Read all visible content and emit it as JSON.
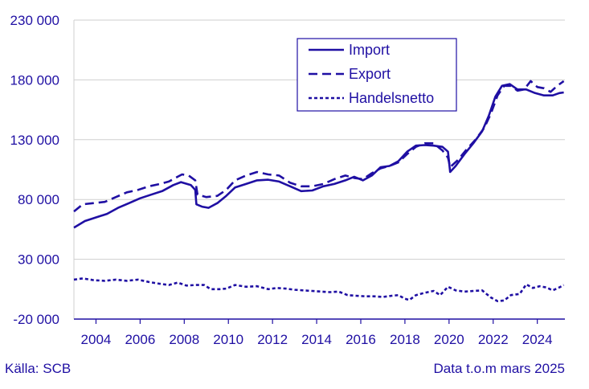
{
  "colors": {
    "series": "#1f0fa3",
    "grid": "#cfcfcf",
    "text": "#1f0fa3"
  },
  "footer": {
    "source": "Källa: SCB",
    "note": "Data t.o.m mars 2025"
  },
  "chart_data": {
    "type": "line",
    "title": "",
    "xlabel": "",
    "ylabel": "",
    "xlim": [
      2003.0,
      2025.25
    ],
    "ylim": [
      -20000,
      230000
    ],
    "yticks": [
      -20000,
      30000,
      80000,
      130000,
      180000,
      230000
    ],
    "ytick_labels": [
      "-20 000",
      "30 000",
      "80 000",
      "130 000",
      "180 000",
      "230 000"
    ],
    "xticks": [
      2004,
      2006,
      2008,
      2010,
      2012,
      2014,
      2016,
      2018,
      2020,
      2022,
      2024
    ],
    "xtick_labels": [
      "2004",
      "2006",
      "2008",
      "2010",
      "2012",
      "2014",
      "2016",
      "2018",
      "2020",
      "2022",
      "2024"
    ],
    "grid": "horizontal",
    "legend": "top-center",
    "series": [
      {
        "name": "Import",
        "style": "solid",
        "points": [
          [
            2003.0,
            56500
          ],
          [
            2003.5,
            62000
          ],
          [
            2004.0,
            65000
          ],
          [
            2004.5,
            68000
          ],
          [
            2005.0,
            73000
          ],
          [
            2005.5,
            77000
          ],
          [
            2006.0,
            81000
          ],
          [
            2006.5,
            84000
          ],
          [
            2007.0,
            87000
          ],
          [
            2007.5,
            92000
          ],
          [
            2007.85,
            94500
          ],
          [
            2008.3,
            92000
          ],
          [
            2008.5,
            88000
          ],
          [
            2008.55,
            76000
          ],
          [
            2008.8,
            74000
          ],
          [
            2009.1,
            73000
          ],
          [
            2009.5,
            77000
          ],
          [
            2009.9,
            83000
          ],
          [
            2010.3,
            90000
          ],
          [
            2010.8,
            93000
          ],
          [
            2011.3,
            96000
          ],
          [
            2011.8,
            96500
          ],
          [
            2012.3,
            95000
          ],
          [
            2012.8,
            91000
          ],
          [
            2013.3,
            87000
          ],
          [
            2013.8,
            87500
          ],
          [
            2014.3,
            91000
          ],
          [
            2014.8,
            93000
          ],
          [
            2015.3,
            96000
          ],
          [
            2015.7,
            99000
          ],
          [
            2016.1,
            96000
          ],
          [
            2016.5,
            100000
          ],
          [
            2016.9,
            107000
          ],
          [
            2017.3,
            108000
          ],
          [
            2017.7,
            112000
          ],
          [
            2018.1,
            120000
          ],
          [
            2018.5,
            125000
          ],
          [
            2018.9,
            125500
          ],
          [
            2019.3,
            125000
          ],
          [
            2019.7,
            124000
          ],
          [
            2019.95,
            120000
          ],
          [
            2020.05,
            103000
          ],
          [
            2020.3,
            108000
          ],
          [
            2020.7,
            118000
          ],
          [
            2021.1,
            127000
          ],
          [
            2021.5,
            137000
          ],
          [
            2021.8,
            150000
          ],
          [
            2022.1,
            166000
          ],
          [
            2022.4,
            175000
          ],
          [
            2022.75,
            176500
          ],
          [
            2023.1,
            172000
          ],
          [
            2023.5,
            172000
          ],
          [
            2023.9,
            169000
          ],
          [
            2024.3,
            167000
          ],
          [
            2024.7,
            167000
          ],
          [
            2025.0,
            169000
          ],
          [
            2025.2,
            169500
          ]
        ]
      },
      {
        "name": "Export",
        "style": "dashed",
        "points": [
          [
            2003.0,
            70000
          ],
          [
            2003.4,
            76000
          ],
          [
            2003.9,
            77000
          ],
          [
            2004.4,
            78000
          ],
          [
            2004.9,
            82000
          ],
          [
            2005.4,
            86000
          ],
          [
            2005.9,
            88000
          ],
          [
            2006.4,
            91000
          ],
          [
            2006.9,
            93000
          ],
          [
            2007.3,
            95000
          ],
          [
            2007.7,
            99000
          ],
          [
            2007.9,
            101000
          ],
          [
            2008.2,
            100000
          ],
          [
            2008.5,
            96000
          ],
          [
            2008.6,
            84000
          ],
          [
            2009.0,
            82000
          ],
          [
            2009.5,
            83000
          ],
          [
            2009.9,
            88000
          ],
          [
            2010.3,
            96000
          ],
          [
            2010.8,
            100000
          ],
          [
            2011.3,
            103000
          ],
          [
            2011.8,
            101000
          ],
          [
            2012.3,
            100000
          ],
          [
            2012.8,
            94000
          ],
          [
            2013.3,
            91000
          ],
          [
            2013.8,
            91000
          ],
          [
            2014.3,
            93000
          ],
          [
            2014.8,
            97000
          ],
          [
            2015.3,
            100000
          ],
          [
            2015.7,
            98000
          ],
          [
            2016.1,
            97000
          ],
          [
            2016.5,
            102000
          ],
          [
            2016.9,
            106000
          ],
          [
            2017.3,
            108000
          ],
          [
            2017.7,
            111000
          ],
          [
            2018.1,
            118000
          ],
          [
            2018.5,
            124000
          ],
          [
            2018.9,
            127000
          ],
          [
            2019.3,
            127000
          ],
          [
            2019.7,
            121000
          ],
          [
            2019.95,
            115000
          ],
          [
            2020.05,
            107000
          ],
          [
            2020.4,
            113000
          ],
          [
            2020.8,
            122000
          ],
          [
            2021.2,
            130000
          ],
          [
            2021.6,
            140000
          ],
          [
            2021.9,
            152000
          ],
          [
            2022.2,
            167000
          ],
          [
            2022.5,
            175000
          ],
          [
            2022.8,
            175000
          ],
          [
            2023.1,
            171000
          ],
          [
            2023.4,
            172000
          ],
          [
            2023.7,
            179000
          ],
          [
            2024.0,
            174000
          ],
          [
            2024.3,
            173000
          ],
          [
            2024.6,
            170000
          ],
          [
            2024.9,
            175000
          ],
          [
            2025.2,
            179000
          ]
        ]
      },
      {
        "name": "Handelsnetto",
        "style": "dotted",
        "points": [
          [
            2003.0,
            13000
          ],
          [
            2003.4,
            14000
          ],
          [
            2003.9,
            12500
          ],
          [
            2004.4,
            12000
          ],
          [
            2004.9,
            13000
          ],
          [
            2005.4,
            12000
          ],
          [
            2005.9,
            13000
          ],
          [
            2006.4,
            11000
          ],
          [
            2006.9,
            9500
          ],
          [
            2007.3,
            8500
          ],
          [
            2007.7,
            10500
          ],
          [
            2008.1,
            8000
          ],
          [
            2008.5,
            8500
          ],
          [
            2008.9,
            8500
          ],
          [
            2009.2,
            5000
          ],
          [
            2009.6,
            5000
          ],
          [
            2009.9,
            5500
          ],
          [
            2010.3,
            8500
          ],
          [
            2010.8,
            7000
          ],
          [
            2011.3,
            7500
          ],
          [
            2011.8,
            5000
          ],
          [
            2012.2,
            6000
          ],
          [
            2012.6,
            5500
          ],
          [
            2013.0,
            4500
          ],
          [
            2013.4,
            4000
          ],
          [
            2013.8,
            3500
          ],
          [
            2014.2,
            3000
          ],
          [
            2014.6,
            2500
          ],
          [
            2015.0,
            3000
          ],
          [
            2015.4,
            0
          ],
          [
            2015.8,
            -500
          ],
          [
            2016.2,
            -1000
          ],
          [
            2016.6,
            -1000
          ],
          [
            2017.0,
            -1500
          ],
          [
            2017.4,
            -500
          ],
          [
            2017.7,
            0
          ],
          [
            2018.0,
            -3000
          ],
          [
            2018.2,
            -4000
          ],
          [
            2018.5,
            0
          ],
          [
            2018.9,
            2000
          ],
          [
            2019.3,
            3500
          ],
          [
            2019.6,
            0
          ],
          [
            2019.95,
            7000
          ],
          [
            2020.3,
            4000
          ],
          [
            2020.7,
            3000
          ],
          [
            2021.1,
            3500
          ],
          [
            2021.5,
            4000
          ],
          [
            2021.9,
            -2000
          ],
          [
            2022.2,
            -5000
          ],
          [
            2022.5,
            -4500
          ],
          [
            2022.8,
            0
          ],
          [
            2023.2,
            1000
          ],
          [
            2023.5,
            9000
          ],
          [
            2023.8,
            6000
          ],
          [
            2024.1,
            7500
          ],
          [
            2024.4,
            6500
          ],
          [
            2024.7,
            4000
          ],
          [
            2025.0,
            6500
          ],
          [
            2025.2,
            8500
          ]
        ]
      }
    ]
  }
}
